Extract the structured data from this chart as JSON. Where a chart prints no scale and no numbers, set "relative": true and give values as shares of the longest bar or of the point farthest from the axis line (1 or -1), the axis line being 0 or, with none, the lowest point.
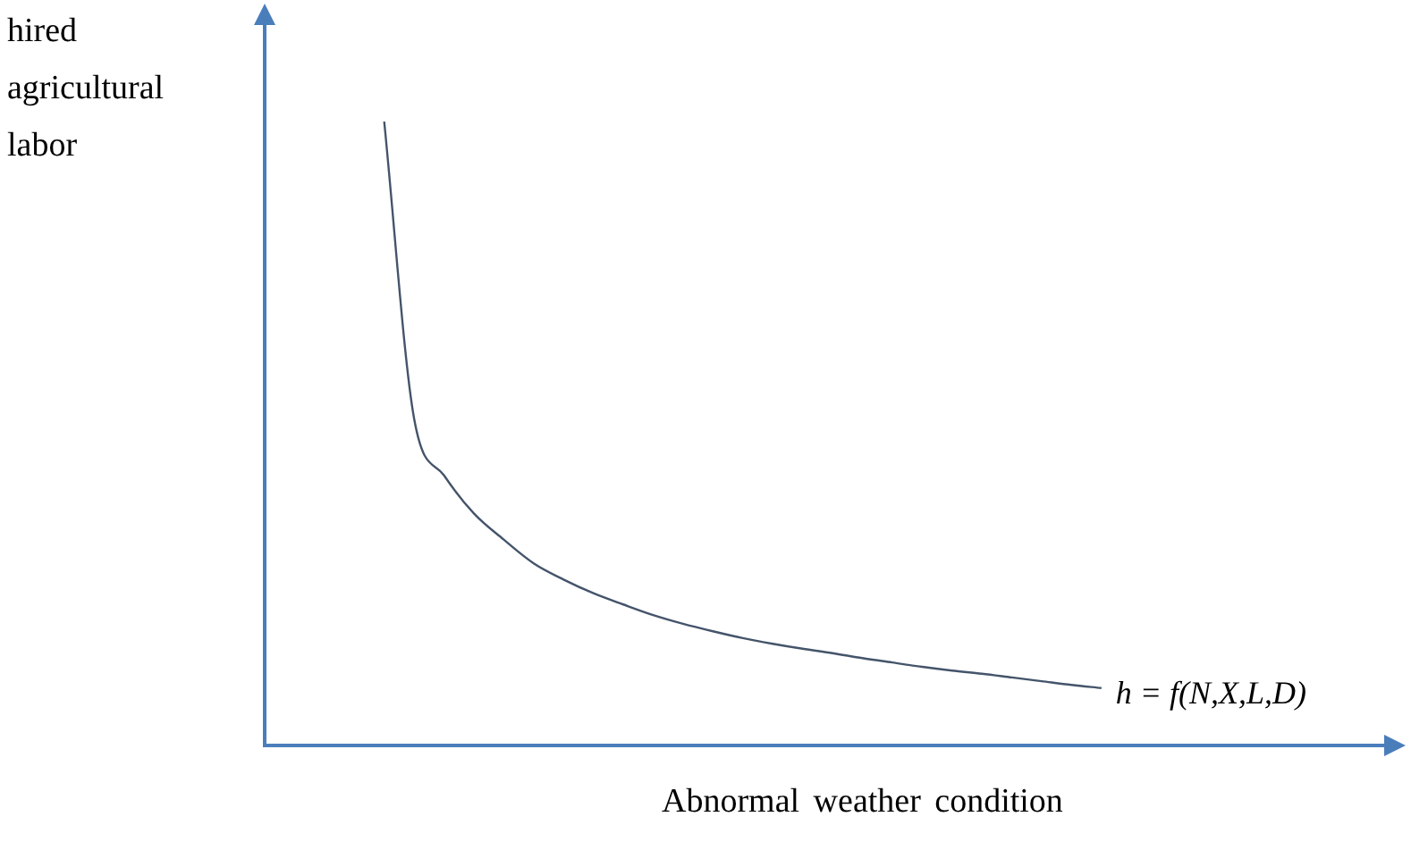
{
  "chart_data": {
    "type": "line",
    "relative": true,
    "xlabel": "Abnormal weather condition",
    "ylabel": "hired agricultural labor",
    "categories": [
      null,
      null,
      null,
      null,
      null,
      null,
      null,
      null,
      null,
      null,
      null,
      null,
      null,
      null,
      null,
      null,
      null,
      null,
      null,
      null,
      null,
      null,
      null,
      null,
      null,
      null,
      null,
      null,
      null,
      null,
      null,
      null,
      null,
      null,
      null,
      null,
      null,
      null,
      null
    ],
    "series": [
      {
        "name": "h = f(N,X,L,D)",
        "color": "#44546a",
        "values": [
          null,
          null,
          null,
          null,
          1.0,
          0.524,
          0.433,
          0.372,
          0.33,
          0.292,
          0.266,
          0.244,
          0.226,
          0.209,
          0.195,
          0.183,
          0.172,
          0.163,
          0.155,
          0.148,
          0.14,
          0.133,
          0.126,
          0.12,
          0.115,
          0.109,
          0.103,
          0.097,
          0.092,
          null,
          null,
          null,
          null,
          null,
          null,
          null,
          null,
          null,
          null
        ]
      }
    ],
    "legend": false,
    "marker": "none",
    "line_style": "solid"
  }
}
